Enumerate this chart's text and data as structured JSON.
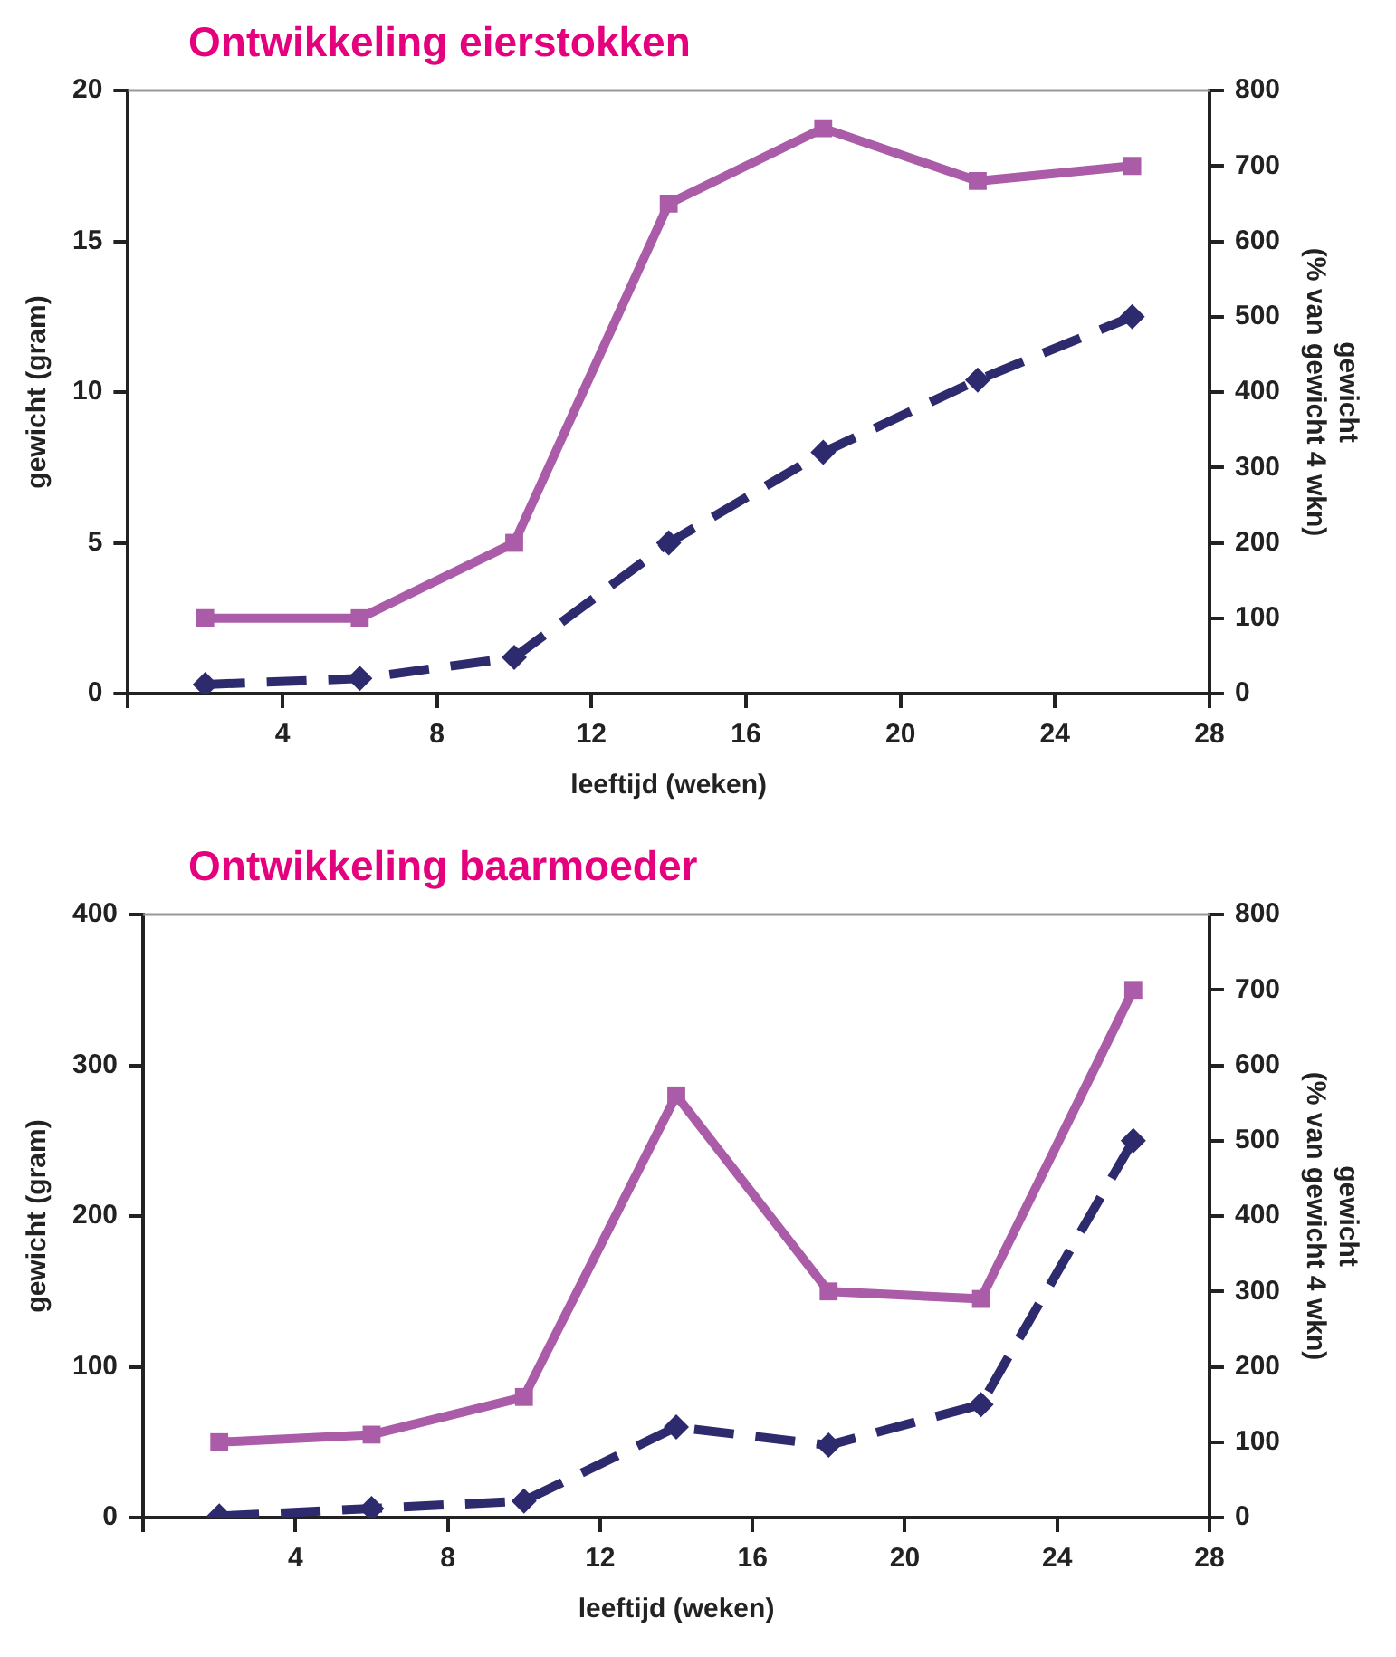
{
  "chart_data": [
    {
      "type": "line",
      "title": "Ontwikkeling eierstokken",
      "xlabel": "leeftijd (weken)",
      "ylabel": "gewicht (gram)",
      "y2label": "gewicht\n(% van gewicht 4 wkn)",
      "x": [
        2,
        6,
        10,
        14,
        18,
        22,
        26
      ],
      "series": [
        {
          "color": "#2e2a6e",
          "axis": "y",
          "marker": "diamond",
          "line_style": "dashed",
          "values": [
            0.3,
            0.5,
            1.2,
            5.0,
            8.0,
            10.4,
            12.5
          ]
        },
        {
          "color": "#aa5ca8",
          "axis": "y2",
          "marker": "square",
          "line_style": "solid",
          "values": [
            100,
            100,
            200,
            650,
            750,
            680,
            700
          ]
        }
      ],
      "xlim": [
        0,
        28
      ],
      "xticks": [
        {
          "value": 0,
          "label": null
        },
        4,
        8,
        12,
        16,
        20,
        24,
        28
      ],
      "ylim": [
        0,
        20
      ],
      "yticks": [
        0,
        5,
        10,
        15,
        20
      ],
      "y2lim": [
        0,
        800
      ],
      "y2ticks": [
        0,
        100,
        200,
        300,
        400,
        500,
        600,
        700,
        800
      ],
      "grid": false,
      "legend": false
    },
    {
      "type": "line",
      "title": "Ontwikkeling baarmoeder",
      "xlabel": "leeftijd (weken)",
      "ylabel": "gewicht (gram)",
      "y2label": "gewicht\n(% van gewicht 4 wkn)",
      "x": [
        2,
        6,
        10,
        14,
        18,
        22,
        26
      ],
      "series": [
        {
          "color": "#2e2a6e",
          "axis": "y",
          "marker": "diamond",
          "line_style": "dashed",
          "values": [
            1,
            6,
            11,
            60,
            48,
            75,
            250
          ]
        },
        {
          "color": "#aa5ca8",
          "axis": "y2",
          "marker": "square",
          "line_style": "solid",
          "values": [
            100,
            110,
            160,
            560,
            300,
            290,
            700
          ]
        }
      ],
      "xlim": [
        0,
        28
      ],
      "xticks": [
        {
          "value": 0,
          "label": null
        },
        4,
        8,
        12,
        16,
        20,
        24,
        28
      ],
      "ylim": [
        0,
        400
      ],
      "yticks": [
        0,
        100,
        200,
        300,
        400
      ],
      "y2lim": [
        0,
        800
      ],
      "y2ticks": [
        0,
        100,
        200,
        300,
        400,
        500,
        600,
        700,
        800
      ],
      "grid": false,
      "legend": false
    }
  ]
}
